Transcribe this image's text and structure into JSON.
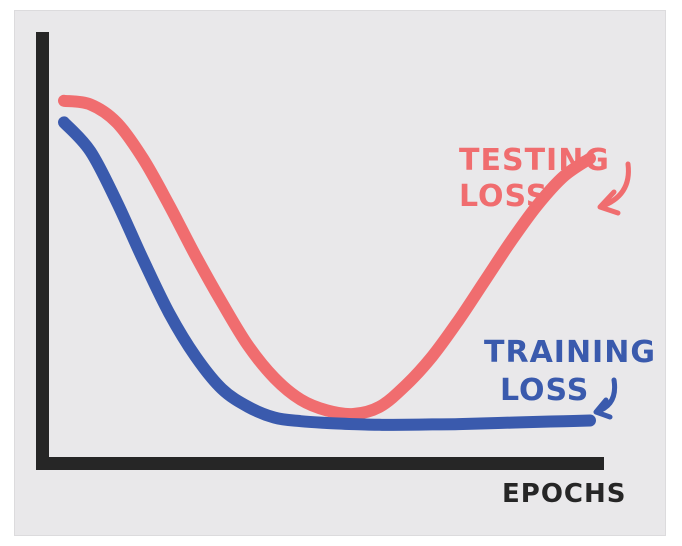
{
  "chart_data": {
    "type": "line",
    "title": "",
    "xlabel": "EPOCHS",
    "ylabel": "",
    "axis_ticks": false,
    "grid": false,
    "legend": "none",
    "series": [
      {
        "name": "TESTING LOSS",
        "color": "#f06d6f",
        "label_lines": [
          "TESTING",
          "LOSS"
        ],
        "x": [
          0,
          5,
          10,
          15,
          20,
          25,
          30,
          35,
          40,
          45,
          50,
          55,
          60,
          65,
          70,
          75,
          80,
          85,
          90,
          95,
          100
        ],
        "y": [
          0.92,
          0.91,
          0.86,
          0.76,
          0.63,
          0.49,
          0.36,
          0.24,
          0.15,
          0.09,
          0.06,
          0.05,
          0.07,
          0.13,
          0.21,
          0.31,
          0.42,
          0.53,
          0.63,
          0.71,
          0.76
        ]
      },
      {
        "name": "TRAINING LOSS",
        "color": "#3a5aad",
        "label_lines": [
          "TRAINING",
          "LOSS"
        ],
        "x": [
          0,
          5,
          10,
          15,
          20,
          25,
          30,
          35,
          40,
          45,
          50,
          55,
          60,
          65,
          70,
          75,
          80,
          85,
          90,
          95,
          100
        ],
        "y": [
          0.86,
          0.78,
          0.64,
          0.48,
          0.33,
          0.21,
          0.12,
          0.07,
          0.04,
          0.03,
          0.025,
          0.022,
          0.02,
          0.02,
          0.021,
          0.022,
          0.024,
          0.026,
          0.028,
          0.03,
          0.032
        ]
      }
    ],
    "xlim": [
      0,
      100
    ],
    "ylim": [
      0,
      1
    ]
  },
  "colors": {
    "axis": "#262626",
    "board": "#e9e8ea",
    "marker_red": "#f06d6f",
    "marker_blue": "#3a5aad"
  }
}
